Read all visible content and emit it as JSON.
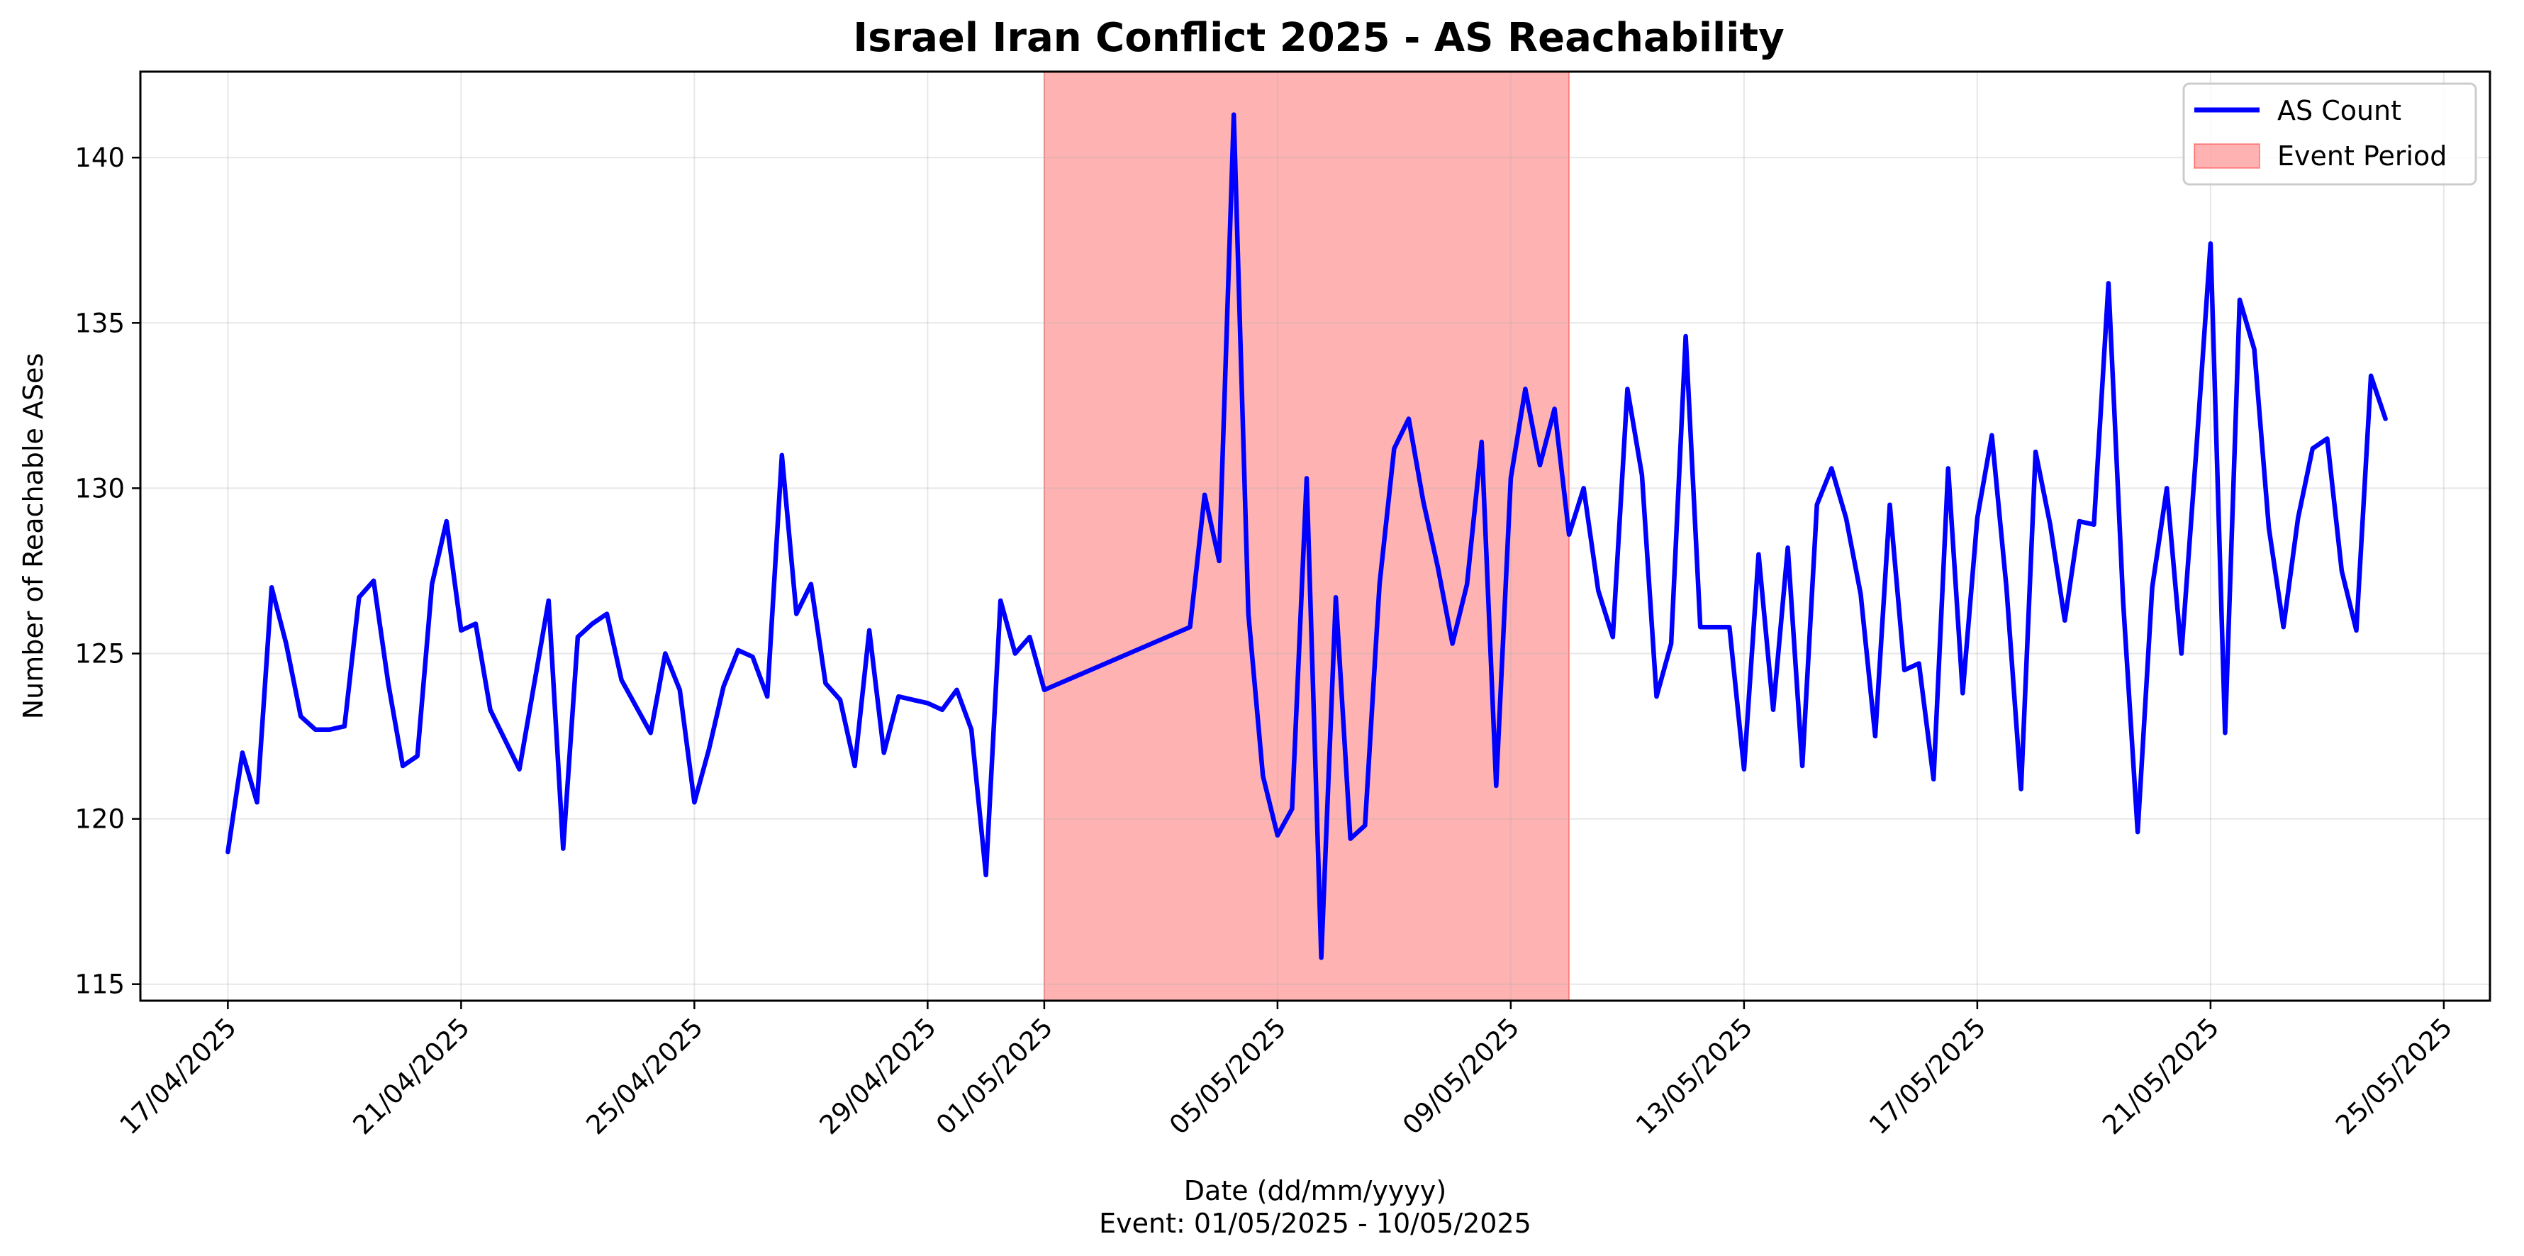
{
  "chart_data": {
    "type": "line",
    "title": "Israel Iran Conflict 2025 - AS Reachability",
    "xlabel": "Date (dd/mm/yyyy)",
    "xlabel_note": "Event: 01/05/2025 - 10/05/2025",
    "ylabel": "Number of Reachable ASes",
    "xlim": [
      "2025-04-15T12:00",
      "2025-05-25T19:00"
    ],
    "ylim": [
      114.5,
      142.6
    ],
    "x_ticks": [
      "17/04/2025",
      "21/04/2025",
      "25/04/2025",
      "29/04/2025",
      "01/05/2025",
      "05/05/2025",
      "09/05/2025",
      "13/05/2025",
      "17/05/2025",
      "21/05/2025",
      "25/05/2025"
    ],
    "x_tick_dates": [
      "2025-04-17",
      "2025-04-21",
      "2025-04-25",
      "2025-04-29",
      "2025-05-01",
      "2025-05-05",
      "2025-05-09",
      "2025-05-13",
      "2025-05-17",
      "2025-05-21",
      "2025-05-25"
    ],
    "y_ticks": [
      115,
      120,
      125,
      130,
      135,
      140
    ],
    "grid": true,
    "legend_position": "top-right",
    "event_period": {
      "name": "Event Period",
      "start": "2025-05-01",
      "end": "2025-05-10",
      "color": "#ff0000",
      "opacity": 0.3
    },
    "series": [
      {
        "name": "AS Count",
        "color": "#0000ff",
        "x": [
          "2025-04-17T00:00",
          "2025-04-17T06:00",
          "2025-04-17T12:00",
          "2025-04-17T18:00",
          "2025-04-18T00:00",
          "2025-04-18T06:00",
          "2025-04-18T12:00",
          "2025-04-18T18:00",
          "2025-04-19T00:00",
          "2025-04-19T06:00",
          "2025-04-19T12:00",
          "2025-04-19T18:00",
          "2025-04-20T00:00",
          "2025-04-20T06:00",
          "2025-04-20T12:00",
          "2025-04-20T18:00",
          "2025-04-21T00:00",
          "2025-04-21T06:00",
          "2025-04-21T12:00",
          "2025-04-22T00:00",
          "2025-04-22T12:00",
          "2025-04-22T18:00",
          "2025-04-23T00:00",
          "2025-04-23T06:00",
          "2025-04-23T12:00",
          "2025-04-23T18:00",
          "2025-04-24T00:00",
          "2025-04-24T06:00",
          "2025-04-24T12:00",
          "2025-04-24T18:00",
          "2025-04-25T00:00",
          "2025-04-25T06:00",
          "2025-04-25T12:00",
          "2025-04-25T18:00",
          "2025-04-26T00:00",
          "2025-04-26T06:00",
          "2025-04-26T12:00",
          "2025-04-26T18:00",
          "2025-04-27T00:00",
          "2025-04-27T06:00",
          "2025-04-27T12:00",
          "2025-04-27T18:00",
          "2025-04-28T00:00",
          "2025-04-28T06:00",
          "2025-04-28T12:00",
          "2025-04-28T18:00",
          "2025-04-29T00:00",
          "2025-04-29T06:00",
          "2025-04-29T12:00",
          "2025-04-29T18:00",
          "2025-04-30T00:00",
          "2025-04-30T06:00",
          "2025-04-30T12:00",
          "2025-04-30T18:00",
          "2025-05-01T00:00",
          "2025-05-03T12:00",
          "2025-05-03T18:00",
          "2025-05-04T00:00",
          "2025-05-04T06:00",
          "2025-05-04T12:00",
          "2025-05-04T18:00",
          "2025-05-05T00:00",
          "2025-05-05T06:00",
          "2025-05-05T12:00",
          "2025-05-05T18:00",
          "2025-05-06T00:00",
          "2025-05-06T06:00",
          "2025-05-06T12:00",
          "2025-05-06T18:00",
          "2025-05-07T00:00",
          "2025-05-07T06:00",
          "2025-05-07T12:00",
          "2025-05-07T18:00",
          "2025-05-08T00:00",
          "2025-05-08T06:00",
          "2025-05-08T12:00",
          "2025-05-08T18:00",
          "2025-05-09T00:00",
          "2025-05-09T06:00",
          "2025-05-09T12:00",
          "2025-05-09T18:00",
          "2025-05-10T00:00",
          "2025-05-10T06:00",
          "2025-05-10T12:00",
          "2025-05-10T18:00",
          "2025-05-11T00:00",
          "2025-05-11T06:00",
          "2025-05-11T12:00",
          "2025-05-11T18:00",
          "2025-05-12T00:00",
          "2025-05-12T06:00",
          "2025-05-12T12:00",
          "2025-05-12T18:00",
          "2025-05-13T00:00",
          "2025-05-13T06:00",
          "2025-05-13T12:00",
          "2025-05-13T18:00",
          "2025-05-14T00:00",
          "2025-05-14T06:00",
          "2025-05-14T12:00",
          "2025-05-14T18:00",
          "2025-05-15T00:00",
          "2025-05-15T06:00",
          "2025-05-15T12:00",
          "2025-05-15T18:00",
          "2025-05-16T00:00",
          "2025-05-16T06:00",
          "2025-05-16T12:00",
          "2025-05-16T18:00",
          "2025-05-17T00:00",
          "2025-05-17T06:00",
          "2025-05-17T12:00",
          "2025-05-17T18:00",
          "2025-05-18T00:00",
          "2025-05-18T06:00",
          "2025-05-18T12:00",
          "2025-05-18T18:00",
          "2025-05-19T00:00",
          "2025-05-19T06:00",
          "2025-05-19T12:00",
          "2025-05-19T18:00",
          "2025-05-20T00:00",
          "2025-05-20T06:00",
          "2025-05-20T12:00",
          "2025-05-20T18:00",
          "2025-05-21T00:00",
          "2025-05-21T06:00",
          "2025-05-21T12:00",
          "2025-05-21T18:00",
          "2025-05-22T00:00",
          "2025-05-22T06:00",
          "2025-05-22T12:00",
          "2025-05-22T18:00",
          "2025-05-23T00:00",
          "2025-05-23T06:00",
          "2025-05-23T12:00",
          "2025-05-23T18:00",
          "2025-05-24T00:00"
        ],
        "values": [
          119.0,
          122.0,
          120.5,
          127.0,
          125.3,
          123.1,
          122.7,
          122.7,
          122.8,
          126.7,
          127.2,
          124.1,
          121.6,
          121.9,
          127.1,
          129.0,
          125.7,
          125.9,
          123.3,
          121.5,
          126.6,
          119.1,
          125.5,
          125.9,
          126.2,
          124.2,
          123.4,
          122.6,
          125.0,
          123.9,
          120.5,
          122.1,
          124.0,
          125.1,
          124.9,
          123.7,
          131.0,
          126.2,
          127.1,
          124.1,
          123.6,
          121.6,
          125.7,
          122.0,
          123.7,
          123.6,
          123.5,
          123.3,
          123.9,
          122.7,
          118.3,
          126.6,
          125.0,
          125.5,
          123.9,
          125.8,
          129.8,
          127.8,
          141.3,
          126.2,
          121.3,
          119.5,
          120.3,
          130.3,
          115.8,
          126.7,
          119.4,
          119.8,
          127.1,
          131.2,
          132.1,
          129.6,
          127.6,
          125.3,
          127.1,
          131.4,
          121.0,
          130.3,
          133.0,
          130.7,
          132.4,
          128.6,
          130.0,
          126.9,
          125.5,
          133.0,
          130.4,
          123.7,
          125.3,
          134.6,
          125.8,
          125.8,
          125.8,
          121.5,
          128.0,
          123.3,
          128.2,
          121.6,
          129.5,
          130.6,
          129.1,
          126.8,
          122.5,
          129.5,
          124.5,
          124.7,
          121.2,
          130.6,
          123.8,
          129.1,
          131.6,
          127.0,
          120.9,
          131.1,
          128.9,
          126.0,
          129.0,
          128.9,
          136.2,
          126.6,
          119.6,
          127.0,
          130.0,
          125.0,
          131.0,
          137.4,
          122.6,
          135.7,
          134.2,
          128.8,
          125.8,
          129.1,
          131.2,
          131.5,
          127.5,
          125.7,
          133.4,
          132.1
        ]
      }
    ]
  }
}
